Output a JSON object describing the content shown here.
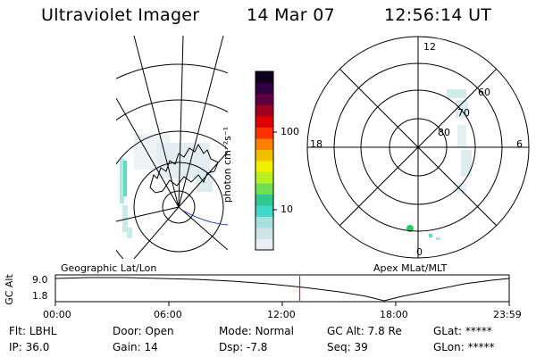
{
  "header": {
    "instrument": "Ultraviolet Imager",
    "date": "14 Mar 07",
    "time": "12:56:14 UT"
  },
  "colorbar": {
    "unit_label": "photon cm⁻²s⁻¹",
    "ticks": [
      "100",
      "10"
    ],
    "scale": "log",
    "colors": [
      "#e8eef2",
      "#cfe5ea",
      "#a8e0e0",
      "#40d8c8",
      "#30c890",
      "#70e050",
      "#b8f020",
      "#f0f000",
      "#f0c000",
      "#ff8000",
      "#ff3000",
      "#e00000",
      "#a00020",
      "#600040",
      "#300040",
      "#100020"
    ]
  },
  "polar_plot": {
    "clock_labels": [
      "12",
      "18",
      "6",
      "0"
    ],
    "latitude_labels": [
      "60",
      "70",
      "80"
    ]
  },
  "timeline": {
    "left_label": "Geographic Lat/Lon",
    "right_label": "Apex MLat/MLT",
    "yaxis_label": "GC Alt",
    "y_ticks": [
      "9.0",
      "1.8"
    ],
    "x_ticks": [
      "00:00",
      "06:00",
      "12:00",
      "18:00",
      "23:59"
    ],
    "current_time_fraction": 0.5386,
    "marker_color": "#e00000"
  },
  "status": {
    "row1": [
      {
        "label": "Flt:",
        "value": "LBHL"
      },
      {
        "label": "Door:",
        "value": "Open"
      },
      {
        "label": "Mode:",
        "value": "Normal"
      },
      {
        "label": "GC Alt:",
        "value": "7.8 Re"
      },
      {
        "label": "GLat:",
        "value": "*****"
      }
    ],
    "row2": [
      {
        "label": "IP:",
        "value": "36.0"
      },
      {
        "label": "Gain:",
        "value": "14"
      },
      {
        "label": "Dsp:",
        "value": "-7.8"
      },
      {
        "label": "Seq:",
        "value": "39"
      },
      {
        "label": "GLon:",
        "value": "*****"
      }
    ]
  }
}
